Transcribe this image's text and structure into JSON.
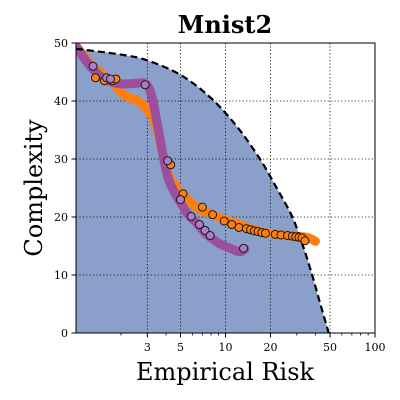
{
  "chart_data": {
    "type": "scatter",
    "title": "Mnist2",
    "xlabel": "Empirical Risk",
    "ylabel": "Complexity",
    "x_scale": "log",
    "xlim": [
      1,
      100
    ],
    "ylim": [
      0,
      50
    ],
    "x_ticks": [
      3,
      5,
      10,
      20,
      50,
      100
    ],
    "y_ticks": [
      0,
      10,
      20,
      30,
      40,
      50
    ],
    "grid": true,
    "colors": {
      "region_fill": "#8a9fc9",
      "frontier": "#000000",
      "orange": "#ff7f0e",
      "purple": "#9b4f9e",
      "purple_marker": "#b07cc6",
      "marker_edge": "#1a1a1a"
    },
    "frontier": {
      "style": "dashed",
      "x": [
        1.0,
        2.0,
        3.0,
        5.0,
        8.0,
        12.0,
        17.0,
        22.0,
        28.0,
        33.0,
        38.0,
        42.0,
        46.0,
        49.0
      ],
      "y": [
        49.0,
        48.0,
        47.0,
        44.5,
        40.5,
        35.5,
        30.0,
        25.0,
        20.0,
        15.0,
        10.0,
        6.0,
        2.5,
        0.0
      ]
    },
    "series": [
      {
        "curve_x": [
          1.0,
          1.3,
          1.7,
          2.1,
          2.6,
          3.0,
          3.4,
          3.8,
          4.2,
          4.6,
          5.0,
          5.6,
          6.5,
          8.0,
          10.0,
          13.0,
          17.0,
          22.0,
          28.0,
          35.0,
          40.0
        ],
        "curve_y": [
          49.5,
          46.0,
          43.5,
          41.0,
          40.0,
          38.5,
          36.0,
          31.0,
          27.0,
          25.5,
          24.0,
          23.0,
          21.5,
          20.5,
          19.5,
          18.5,
          17.5,
          17.0,
          16.7,
          16.5,
          15.8
        ],
        "x": [
          1.35,
          1.55,
          1.75,
          1.85,
          4.3,
          5.2,
          7.0,
          8.2,
          9.8,
          11.0,
          12.3,
          13.8,
          14.7,
          15.6,
          16.5,
          17.5,
          18.5,
          21.5,
          23.5,
          26.0,
          28.0,
          29.5,
          31.0,
          32.5,
          34.0
        ],
        "y": [
          44.0,
          43.5,
          43.5,
          43.8,
          29.0,
          24.0,
          21.7,
          20.4,
          19.3,
          18.7,
          18.2,
          18.0,
          17.8,
          17.6,
          17.5,
          17.3,
          17.2,
          17.0,
          16.9,
          16.8,
          16.7,
          16.6,
          16.5,
          16.4,
          15.9
        ]
      },
      {
        "curve_x": [
          1.0,
          1.2,
          1.5,
          1.9,
          2.4,
          2.9,
          3.2,
          3.5,
          3.8,
          4.1,
          4.5,
          5.0,
          5.6,
          6.5,
          7.5,
          9.0,
          11.0,
          12.5,
          13.5
        ],
        "curve_y": [
          49.5,
          46.5,
          44.0,
          43.0,
          43.0,
          43.0,
          41.0,
          36.0,
          31.0,
          27.0,
          24.5,
          22.5,
          20.5,
          18.8,
          17.0,
          15.5,
          14.5,
          14.0,
          14.5
        ],
        "x": [
          1.3,
          1.6,
          1.7,
          2.9,
          4.1,
          5.0,
          5.9,
          6.7,
          7.3,
          7.9,
          13.2
        ],
        "y": [
          46.0,
          44.0,
          43.8,
          42.8,
          29.7,
          23.0,
          20.1,
          18.7,
          17.7,
          16.8,
          14.6
        ]
      }
    ]
  }
}
